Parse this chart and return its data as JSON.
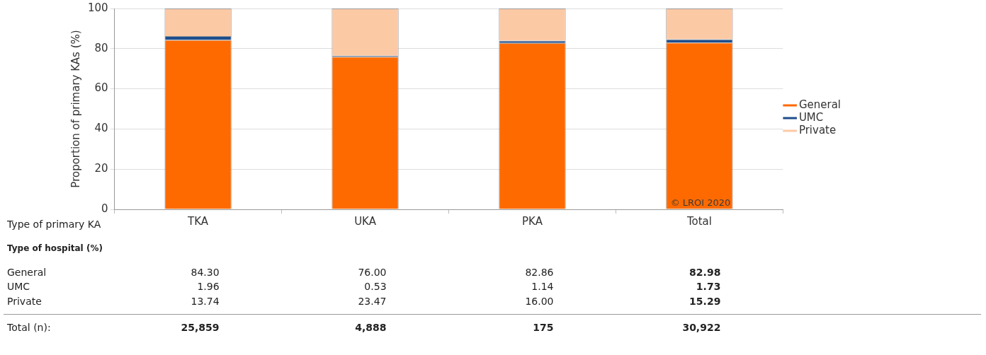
{
  "chart_data": {
    "type": "bar",
    "stacked": true,
    "ylabel": "Proportion of primary KAs (%)",
    "xlabel": "Type of primary KA",
    "categories": [
      "TKA",
      "UKA",
      "PKA",
      "Total"
    ],
    "series": [
      {
        "name": "General",
        "color": "#ff6a00",
        "values": [
          84.3,
          76.0,
          82.86,
          82.98
        ],
        "value_labels": [
          "84.30",
          "76.00",
          "82.86",
          "82.98"
        ]
      },
      {
        "name": "UMC",
        "color": "#1f4e8c",
        "values": [
          1.96,
          0.53,
          1.14,
          1.73
        ],
        "value_labels": [
          "1.96",
          "0.53",
          "1.14",
          "1.73"
        ]
      },
      {
        "name": "Private",
        "color": "#fcc9a5",
        "values": [
          13.74,
          23.47,
          16.0,
          15.29
        ],
        "value_labels": [
          "13.74",
          "23.47",
          "16.00",
          "15.29"
        ]
      }
    ],
    "ylim": [
      0,
      100
    ],
    "yticks": [
      0,
      20,
      40,
      60,
      80,
      100
    ],
    "grid": "y",
    "legend": "right",
    "annotations": [
      "© LROI 2020",
      "Type of hospital (%)",
      "Total (n):",
      "25,859",
      "4,888",
      "175",
      "30,922"
    ]
  }
}
